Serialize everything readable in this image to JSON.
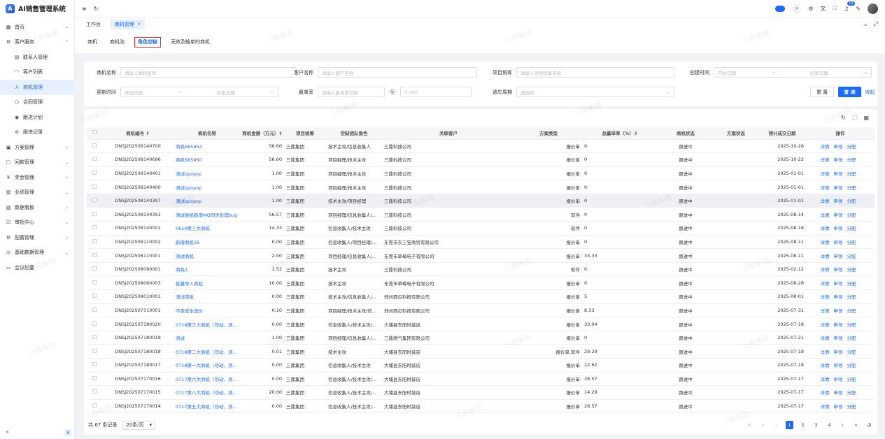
{
  "app": {
    "title": "AI销售管理系统"
  },
  "sidebar": {
    "items": [
      {
        "label": "首页",
        "icon": "grid-icon",
        "chev": "⌄",
        "cls": ""
      },
      {
        "label": "客户服务",
        "icon": "gear-icon",
        "chev": "⌃",
        "cls": ""
      },
      {
        "label": "联系人管理",
        "icon": "card-icon",
        "chev": "",
        "cls": "sub"
      },
      {
        "label": "客户列表",
        "icon": "headset-icon",
        "chev": "",
        "cls": "sub"
      },
      {
        "label": "商机管理",
        "icon": "user-group-icon",
        "chev": "",
        "cls": "sub active"
      },
      {
        "label": "合同管理",
        "icon": "circle-icon",
        "chev": "",
        "cls": "sub"
      },
      {
        "label": "跟进计划",
        "icon": "target-icon",
        "chev": "",
        "cls": "sub"
      },
      {
        "label": "跟进记录",
        "icon": "check-circle-icon",
        "chev": "",
        "cls": "sub"
      },
      {
        "label": "方案管理",
        "icon": "doc-icon",
        "chev": "⌄",
        "cls": ""
      },
      {
        "label": "回款管理",
        "icon": "wallet-icon",
        "chev": "⌄",
        "cls": ""
      },
      {
        "label": "奖金管理",
        "icon": "money-icon",
        "chev": "⌄",
        "cls": ""
      },
      {
        "label": "业绩管理",
        "icon": "chart-icon",
        "chev": "⌄",
        "cls": ""
      },
      {
        "label": "数据看板",
        "icon": "dashboard-icon",
        "chev": "⌄",
        "cls": ""
      },
      {
        "label": "审批中心",
        "icon": "approve-icon",
        "chev": "⌄",
        "cls": ""
      },
      {
        "label": "配置管理",
        "icon": "config-icon",
        "chev": "⌄",
        "cls": ""
      },
      {
        "label": "基础数据管理",
        "icon": "eye-icon",
        "chev": "⌄",
        "cls": ""
      },
      {
        "label": "会议纪要",
        "icon": "note-icon",
        "chev": "",
        "cls": ""
      }
    ],
    "collapse": "«",
    "collapse2": "8"
  },
  "topbar": {
    "badge": "10"
  },
  "tabs": {
    "workbench": "工作台",
    "current": "商机管理",
    "close": "×"
  },
  "subtabs": [
    "商机",
    "商机池",
    "角色空缺",
    "无效及输单的商机"
  ],
  "filter": {
    "name_label": "商机名称",
    "name_ph": "请输入商机名称",
    "cust_label": "客户名称",
    "cust_ph": "请输入客户名称",
    "proj_label": "项目统筹",
    "proj_ph": "请输入项目统筹名称",
    "created_label": "创建时间",
    "start_ph": "开始日期",
    "to": "→",
    "end_ph": "结束日期",
    "updated_label": "更新时间",
    "rate_label": "赢单率",
    "rate_ph": "请输入赢单率范围",
    "rate_sep": "-至-",
    "rate_ph2": "0-100",
    "forget_label": "遗忘周期",
    "forget_ph": "请选择",
    "reset": "重 置",
    "search": "查 询",
    "collapse": "收起"
  },
  "table": {
    "headers": [
      "",
      "商机编号 ⇕",
      "商机名称",
      "商机金额（万元）⇕",
      "项目统筹",
      "空缺团队角色",
      "关联客户",
      "方案类型",
      "总赢单率（%）⇕",
      "商机状态",
      "方案状态",
      "预计成交日期",
      "操作"
    ],
    "rows": [
      [
        "DNSJ202508140700",
        "商机565954",
        "56.60",
        "三鼎集团",
        "技术主攻/信息收集人",
        "三鼎科技公司",
        "报价单",
        "0",
        "跟进中",
        "",
        "2025-10-26"
      ],
      [
        "DNSJ202508140696",
        "商机565950",
        "56.60",
        "三鼎集团",
        "项目经理/技术主攻",
        "三鼎科技公司",
        "报价单",
        "0",
        "跟进中",
        "",
        "2025-10-22"
      ],
      [
        "DNSJ202508140401",
        "测试opopop",
        "1.00",
        "三鼎集团",
        "项目经理/技术主攻",
        "三鼎科技公司",
        "报价单",
        "0",
        "跟进中",
        "",
        "2025-01-01"
      ],
      [
        "DNSJ202508140400",
        "测试opopop",
        "1.00",
        "三鼎集团",
        "项目经理/技术主攻",
        "三鼎科技公司",
        "报价单",
        "0",
        "跟进中",
        "",
        "2025-01-01"
      ],
      [
        "DNSJ202508140397",
        "测试opopop",
        "1.00",
        "三鼎集团",
        "技术主攻/项目经理",
        "三鼎科技公司",
        "报价单",
        "0",
        "跟进中",
        "",
        "2025-01-01"
      ],
      [
        "DNSJ202508140391",
        "测试商机新增MQ同步处理bug",
        "56.57",
        "三鼎集团",
        "项目经理/信息收集人/...",
        "三鼎科技公司",
        "软件",
        "0",
        "跟进中",
        "",
        "2025-08-14"
      ],
      [
        "DNSJ202508140002",
        "0610第三大商机",
        "14.33",
        "三鼎集团",
        "信息收集人/技术主攻",
        "三鼎科技公司",
        "软件",
        "0",
        "跟进中",
        "",
        "2025-08-16"
      ],
      [
        "DNSJ202508110002",
        "新增商机05",
        "0.00",
        "三鼎集团",
        "信息收集人/项目经理/...",
        "东莞市东三宝商贸有限公司",
        "报价单",
        "0",
        "跟进中",
        "",
        "2025-08-11"
      ],
      [
        "DNSJ202508110001",
        "测试商机",
        "2.00",
        "三鼎集团",
        "项目经理/信息收集人/...",
        "东莞市草莓电子有限公司",
        "报价单",
        "33.33",
        "跟进中",
        "",
        "2025-08-11"
      ],
      [
        "DNSJ202508080001",
        "商机1",
        "1.52",
        "三鼎集团",
        "技术主攻",
        "三鼎科技公司",
        "软件",
        "0",
        "跟进中",
        "",
        "2025-02-12"
      ],
      [
        "DNSJ202508060003",
        "批量导入商机",
        "10.00",
        "三鼎集团",
        "技术主攻",
        "东莞市草莓电子有限公司",
        "报价单",
        "0",
        "跟进中",
        "",
        "2025-08-28"
      ],
      [
        "DNSJ202508010001",
        "测试审批",
        "0.00",
        "三鼎集团",
        "技术主攻/信息收集人/...",
        "郑州西瓜科技有限公司",
        "报价单",
        "5",
        "跟进中",
        "",
        "2025-08-01"
      ],
      [
        "DNSJ202507310001",
        "不走成本选价",
        "0.10",
        "三鼎集团",
        "项目经理/技术主攻/信...",
        "郑州西瓜科技有限公司",
        "报价单",
        "8.33",
        "跟进中",
        "",
        "2025-07-31"
      ],
      [
        "DNSJ202507180020",
        "0718第三大商机（勿动、测试...",
        "0.00",
        "三鼎集团",
        "信息收集人/技术主攻/...",
        "大埔县东阳时装店",
        "报价单",
        "33.04",
        "跟进中",
        "",
        "2025-07-18"
      ],
      [
        "DNSJ202507180019",
        "测试",
        "1.00",
        "三鼎集团",
        "项目经理/信息收集人/...",
        "三鼎燃气集团有限公司",
        "报价单",
        "0",
        "跟进中",
        "",
        "2025-07-21"
      ],
      [
        "DNSJ202507180018",
        "0718第二大商机（勿动、测试...",
        "0.01",
        "三鼎集团",
        "技术主攻",
        "大埔县东阳时装店",
        "报价单,软件",
        "29.29",
        "跟进中",
        "",
        "2025-07-18"
      ],
      [
        "DNSJ202507180017",
        "0718第一大商机（勿动、测试...",
        "0.00",
        "三鼎集团",
        "信息收集人/技术主攻",
        "大埔县东阳时装店",
        "报价单",
        "22.62",
        "跟进中",
        "",
        "2025-07-18"
      ],
      [
        "DNSJ202507170016",
        "0717第六大商机（勿动、测试...",
        "0.00",
        "三鼎集团",
        "信息收集人/技术主攻/...",
        "大埔县东阳时装店",
        "报价单",
        "28.57",
        "跟进中",
        "",
        "2025-07-17"
      ],
      [
        "DNSJ202507170015",
        "0717第八大商机（勿动、测试...",
        "20.00",
        "三鼎集团",
        "信息收集人/技术主攻/...",
        "大埔县东阳时装店",
        "报价单",
        "14.29",
        "跟进中",
        "",
        "2025-07-17"
      ],
      [
        "DNSJ202507170014",
        "0717第五大商机（勿动、测试...",
        "0.00",
        "三鼎集团",
        "信息收集人/技术主攻/...",
        "大埔县东阳时装店",
        "报价单",
        "28.57",
        "跟进中",
        "",
        "2025-07-17"
      ]
    ],
    "ops": [
      "详情",
      "申领",
      "分配"
    ]
  },
  "pager": {
    "total": "共 67 条记录",
    "size": "20条/页",
    "size_arrow": "▾",
    "pages": [
      "1",
      "2",
      "3",
      "4"
    ],
    "nav": [
      "K",
      "«",
      "‹",
      "›",
      "»",
      "Ꮚ"
    ]
  },
  "watermark": "三鼎集团"
}
